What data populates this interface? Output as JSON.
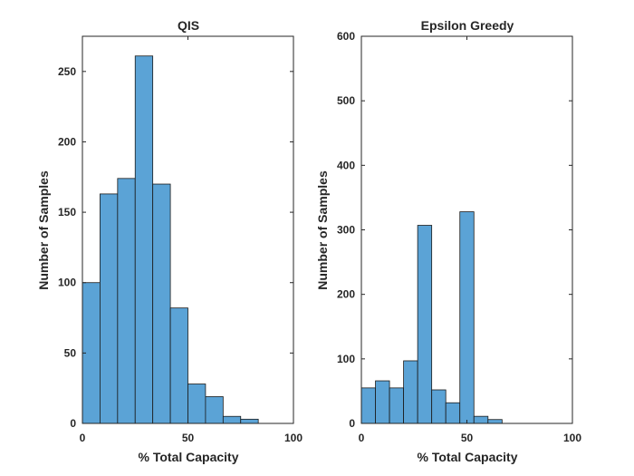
{
  "chart_data": [
    {
      "type": "bar",
      "title": "QIS",
      "xlabel": "% Total Capacity",
      "ylabel": "Number of Samples",
      "xlim": [
        0,
        100
      ],
      "ylim": [
        0,
        275
      ],
      "xticks": [
        0,
        50,
        100
      ],
      "yticks": [
        0,
        50,
        100,
        150,
        200,
        250
      ],
      "bin_edges": [
        0,
        8.33,
        16.67,
        25,
        33.33,
        41.67,
        50,
        58.33,
        66.67,
        75,
        83.33
      ],
      "values": [
        100,
        163,
        174,
        261,
        170,
        82,
        28,
        19,
        5,
        3
      ],
      "color": "#5ba3d6",
      "grid": false
    },
    {
      "type": "bar",
      "title": "Epsilon Greedy",
      "xlabel": "% Total Capacity",
      "ylabel": "Number of Samples",
      "xlim": [
        0,
        100
      ],
      "ylim": [
        0,
        600
      ],
      "xticks": [
        0,
        50,
        100
      ],
      "yticks": [
        0,
        100,
        200,
        300,
        400,
        500,
        600
      ],
      "bin_edges": [
        0,
        6.67,
        13.33,
        20,
        26.67,
        33.33,
        40,
        46.67,
        53.33,
        60,
        66.67
      ],
      "values": [
        55,
        66,
        55,
        97,
        307,
        52,
        32,
        328,
        11,
        6
      ],
      "color": "#5ba3d6",
      "grid": false
    }
  ]
}
